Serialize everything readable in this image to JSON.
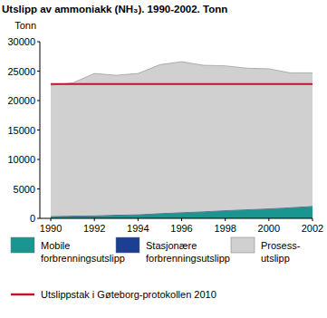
{
  "chart_data": {
    "type": "area",
    "title": "Utslipp av ammoniakk (NH₃). 1990-2002. Tonn",
    "y_label": "Tonn",
    "stacked": true,
    "grid": false,
    "x": [
      1990,
      1991,
      1992,
      1993,
      1994,
      1995,
      1996,
      1997,
      1998,
      1999,
      2000,
      2001,
      2002
    ],
    "xlim": [
      1989.5,
      2002
    ],
    "xticks": [
      1990,
      1992,
      1994,
      1996,
      1998,
      2000,
      2002
    ],
    "ylim": [
      0,
      30000
    ],
    "yticks": [
      0,
      5000,
      10000,
      15000,
      20000,
      25000,
      30000
    ],
    "series": [
      {
        "name": "Mobile forbrenningsutslipp",
        "type": "area",
        "color": "#1a9590",
        "values": [
          300,
          350,
          400,
          500,
          600,
          800,
          950,
          1100,
          1300,
          1450,
          1600,
          1800,
          2000
        ]
      },
      {
        "name": "Stasjonære forbrenningsutslipp",
        "type": "area",
        "color": "#1c3f94",
        "values": [
          100,
          100,
          100,
          100,
          100,
          100,
          100,
          100,
          100,
          100,
          100,
          100,
          100
        ]
      },
      {
        "name": "Prosess-utslipp",
        "type": "area",
        "color": "#d0d0d0",
        "values": [
          22200,
          22550,
          24100,
          23700,
          23900,
          25200,
          25550,
          24800,
          24500,
          23950,
          23700,
          22800,
          22600
        ]
      },
      {
        "name": "Utslippstak i Gøteborg-protokollen 2010",
        "type": "line",
        "color": "#c8102e",
        "values": [
          22800,
          22800,
          22800,
          22800,
          22800,
          22800,
          22800,
          22800,
          22800,
          22800,
          22800,
          22800,
          22800
        ]
      }
    ]
  }
}
